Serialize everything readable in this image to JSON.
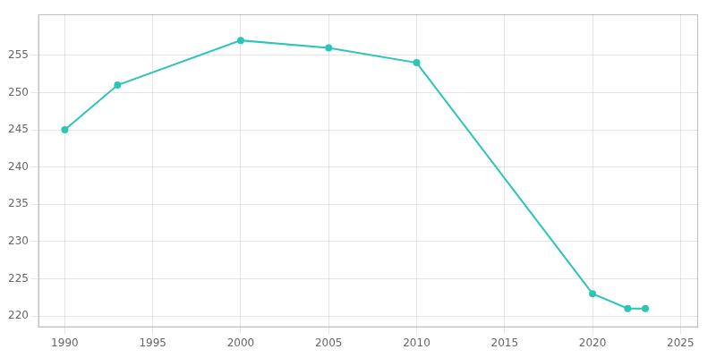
{
  "chart_data": {
    "type": "line",
    "x": [
      1990,
      1993,
      2000,
      2005,
      2010,
      2020,
      2022,
      2023
    ],
    "values": [
      245,
      251,
      257,
      256,
      254,
      223,
      221,
      221
    ],
    "color": "#2EC4B6",
    "marker": "circle",
    "xlim": [
      1988.5,
      2026
    ],
    "ylim": [
      218.5,
      260.5
    ],
    "xticks": [
      1990,
      1995,
      2000,
      2005,
      2010,
      2015,
      2020,
      2025
    ],
    "yticks": [
      220,
      225,
      230,
      235,
      240,
      245,
      250,
      255
    ],
    "grid": true
  }
}
